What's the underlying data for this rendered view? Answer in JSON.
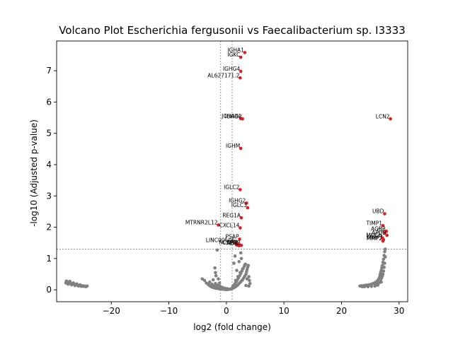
{
  "chart_data": {
    "type": "scatter",
    "title": "Volcano Plot Escherichia fergusonii vs Faecalibacterium sp. I3333",
    "xlabel": "log2 (fold change)",
    "ylabel": "-log10 (Adjusted p-value)",
    "xlim": [
      -29.5,
      31.5
    ],
    "ylim": [
      -0.38,
      7.95
    ],
    "xticks": [
      -20,
      -10,
      0,
      10,
      20,
      30
    ],
    "yticks": [
      0,
      1,
      2,
      3,
      4,
      5,
      6,
      7
    ],
    "grid": false,
    "thresholds": {
      "x": [
        -1,
        1
      ],
      "y": 1.3
    },
    "colors": {
      "significant": "#e41a1c",
      "nonsignificant": "#808080",
      "threshold_line": "#808080"
    },
    "significant_points": [
      {
        "label": "IGHA1",
        "x": 3.2,
        "y": 7.58
      },
      {
        "label": "IGKC",
        "x": 2.5,
        "y": 7.43
      },
      {
        "label": "IGHG4",
        "x": 2.5,
        "y": 6.98
      },
      {
        "label": "AL627171.2",
        "x": 2.4,
        "y": 6.77
      },
      {
        "label": "JCHAIN",
        "x": 2.5,
        "y": 5.47
      },
      {
        "label": "IGHG3",
        "x": 2.8,
        "y": 5.46
      },
      {
        "label": "LCN2",
        "x": 28.5,
        "y": 5.46
      },
      {
        "label": "IGHM",
        "x": 2.5,
        "y": 4.52
      },
      {
        "label": "IGLC2",
        "x": 2.4,
        "y": 3.2
      },
      {
        "label": "IGHG2",
        "x": 3.5,
        "y": 2.77
      },
      {
        "label": "IGLC3",
        "x": 3.7,
        "y": 2.62
      },
      {
        "label": "UBD",
        "x": 27.5,
        "y": 2.43
      },
      {
        "label": "REG1A",
        "x": 2.6,
        "y": 2.3
      },
      {
        "label": "MTRNR2L12",
        "x": -1.4,
        "y": 2.07
      },
      {
        "label": "TIMP1",
        "x": 27.2,
        "y": 2.05
      },
      {
        "label": "CXCL14",
        "x": 2.4,
        "y": 1.98
      },
      {
        "label": "AGR3",
        "x": 27.8,
        "y": 1.87
      },
      {
        "label": "C3",
        "x": 27.5,
        "y": 1.82
      },
      {
        "label": "APOB",
        "x": 27.9,
        "y": 1.74
      },
      {
        "label": "PSAP",
        "x": 2.3,
        "y": 1.62
      },
      {
        "label": "MUC6",
        "x": 27.1,
        "y": 1.66
      },
      {
        "label": "MMP7",
        "x": 27.3,
        "y": 1.6
      },
      {
        "label": "MMP2",
        "x": 27.2,
        "y": 1.56
      },
      {
        "label": "LINC00506",
        "x": 1.6,
        "y": 1.5
      },
      {
        "label": "NCOA3",
        "x": 2.1,
        "y": 1.44
      },
      {
        "label": "ACTB",
        "x": 2.6,
        "y": 1.42
      },
      {
        "label": "LYZ",
        "x": 2.2,
        "y": 1.41
      },
      {
        "label": "CST3",
        "x": 1.8,
        "y": 1.43
      }
    ],
    "nonsignificant_points": [
      [
        -27.8,
        0.28
      ],
      [
        -27.6,
        0.25
      ],
      [
        -27.3,
        0.22
      ],
      [
        -27.0,
        0.2
      ],
      [
        -26.7,
        0.19
      ],
      [
        -26.4,
        0.17
      ],
      [
        -26.1,
        0.16
      ],
      [
        -25.9,
        0.15
      ],
      [
        -25.6,
        0.14
      ],
      [
        -25.3,
        0.13
      ],
      [
        -25.0,
        0.13
      ],
      [
        -24.6,
        0.12
      ],
      [
        -24.2,
        0.12
      ],
      [
        -27.9,
        0.22
      ],
      [
        -27.5,
        0.18
      ],
      [
        -26.9,
        0.16
      ],
      [
        -26.3,
        0.14
      ],
      [
        -25.7,
        0.12
      ],
      [
        -25.2,
        0.11
      ],
      [
        -24.8,
        0.11
      ],
      [
        -24.4,
        0.1
      ],
      [
        -27.2,
        0.27
      ],
      [
        -26.6,
        0.22
      ],
      [
        -26.0,
        0.19
      ],
      [
        -25.4,
        0.16
      ],
      [
        -4.2,
        0.35
      ],
      [
        -3.8,
        0.3
      ],
      [
        -3.5,
        0.22
      ],
      [
        -3.2,
        0.18
      ],
      [
        -3.0,
        0.15
      ],
      [
        -2.8,
        0.12
      ],
      [
        -2.6,
        0.1
      ],
      [
        -2.4,
        0.08
      ],
      [
        -2.2,
        0.07
      ],
      [
        -2.0,
        0.06
      ],
      [
        -1.8,
        0.05
      ],
      [
        -1.6,
        0.05
      ],
      [
        -1.4,
        0.04
      ],
      [
        -1.2,
        0.03
      ],
      [
        -1.0,
        0.03
      ],
      [
        -0.8,
        0.02
      ],
      [
        -0.6,
        0.02
      ],
      [
        -0.4,
        0.02
      ],
      [
        -0.2,
        0.01
      ],
      [
        0.0,
        0.01
      ],
      [
        0.2,
        0.01
      ],
      [
        0.4,
        0.02
      ],
      [
        0.6,
        0.02
      ],
      [
        0.8,
        0.03
      ],
      [
        1.0,
        0.04
      ],
      [
        -2.9,
        0.25
      ],
      [
        -2.5,
        0.18
      ],
      [
        -2.1,
        0.13
      ],
      [
        -1.7,
        0.1
      ],
      [
        -1.3,
        0.07
      ],
      [
        -0.9,
        0.05
      ],
      [
        -0.5,
        0.04
      ],
      [
        -1.9,
        0.2
      ],
      [
        -1.5,
        0.15
      ],
      [
        -1.1,
        0.11
      ],
      [
        -2.3,
        0.32
      ],
      [
        -1.8,
        0.45
      ],
      [
        -1.9,
        0.55
      ],
      [
        -2.0,
        0.7
      ],
      [
        -1.6,
        1.27
      ],
      [
        -1.4,
        0.35
      ],
      [
        -1.2,
        0.22
      ],
      [
        -0.7,
        0.08
      ],
      [
        -0.3,
        0.05
      ],
      [
        0.1,
        0.04
      ],
      [
        1.2,
        0.06
      ],
      [
        1.4,
        0.08
      ],
      [
        1.6,
        0.1
      ],
      [
        1.8,
        0.13
      ],
      [
        2.0,
        0.16
      ],
      [
        2.2,
        0.2
      ],
      [
        2.4,
        0.24
      ],
      [
        2.6,
        0.28
      ],
      [
        2.8,
        0.32
      ],
      [
        3.0,
        0.38
      ],
      [
        3.2,
        0.44
      ],
      [
        3.4,
        0.5
      ],
      [
        3.5,
        0.58
      ],
      [
        3.6,
        0.65
      ],
      [
        3.7,
        0.72
      ],
      [
        3.8,
        0.78
      ],
      [
        1.3,
        0.15
      ],
      [
        1.5,
        0.2
      ],
      [
        1.7,
        0.26
      ],
      [
        1.9,
        0.32
      ],
      [
        2.1,
        0.38
      ],
      [
        2.3,
        0.45
      ],
      [
        2.5,
        0.52
      ],
      [
        2.7,
        0.6
      ],
      [
        2.9,
        0.68
      ],
      [
        3.1,
        0.75
      ],
      [
        3.3,
        0.82
      ],
      [
        1.1,
        0.1
      ],
      [
        1.6,
        0.3
      ],
      [
        2.0,
        0.42
      ],
      [
        2.4,
        0.55
      ],
      [
        2.8,
        0.66
      ],
      [
        3.2,
        0.8
      ],
      [
        2.2,
        0.9
      ],
      [
        2.6,
        1.0
      ],
      [
        2.5,
        1.18
      ],
      [
        1.5,
        1.08
      ],
      [
        1.3,
        0.85
      ],
      [
        1.8,
        0.62
      ],
      [
        3.6,
        0.35
      ],
      [
        3.9,
        0.42
      ],
      [
        4.0,
        0.3
      ],
      [
        4.1,
        0.2
      ],
      [
        3.9,
        0.12
      ],
      [
        3.4,
        0.14
      ],
      [
        23.2,
        0.12
      ],
      [
        23.5,
        0.13
      ],
      [
        23.8,
        0.13
      ],
      [
        24.1,
        0.14
      ],
      [
        24.4,
        0.15
      ],
      [
        24.7,
        0.16
      ],
      [
        25.0,
        0.17
      ],
      [
        25.3,
        0.19
      ],
      [
        25.6,
        0.21
      ],
      [
        25.9,
        0.24
      ],
      [
        26.2,
        0.28
      ],
      [
        26.4,
        0.33
      ],
      [
        26.6,
        0.4
      ],
      [
        26.7,
        0.48
      ],
      [
        26.8,
        0.55
      ],
      [
        26.9,
        0.62
      ],
      [
        27.0,
        0.7
      ],
      [
        27.1,
        0.78
      ],
      [
        27.2,
        0.88
      ],
      [
        27.3,
        0.98
      ],
      [
        27.4,
        1.1
      ],
      [
        27.5,
        1.22
      ],
      [
        27.6,
        1.3
      ],
      [
        26.5,
        0.22
      ],
      [
        26.8,
        0.3
      ],
      [
        27.0,
        0.38
      ],
      [
        27.2,
        0.5
      ],
      [
        27.3,
        0.6
      ],
      [
        26.3,
        0.15
      ],
      [
        25.8,
        0.12
      ],
      [
        25.2,
        0.11
      ],
      [
        24.6,
        0.1
      ],
      [
        24.0,
        0.1
      ],
      [
        23.6,
        0.1
      ],
      [
        27.4,
        0.72
      ],
      [
        27.5,
        0.85
      ],
      [
        26.9,
        0.25
      ],
      [
        26.1,
        0.18
      ],
      [
        27.6,
        1.05
      ],
      [
        27.1,
        0.45
      ]
    ]
  }
}
